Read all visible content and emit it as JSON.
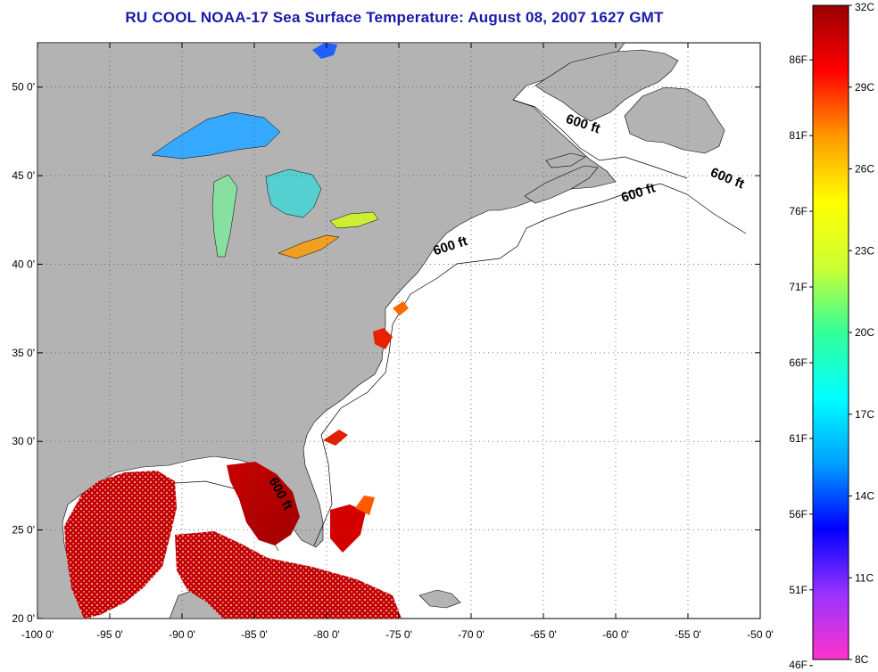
{
  "title": "RU COOL  NOAA-17  Sea Surface Temperature:  August 08, 2007 1627 GMT",
  "map": {
    "lon_range": [
      -100,
      -50
    ],
    "lat_range": [
      20,
      52.5
    ],
    "lon_ticks": [
      {
        "v": -100,
        "label": "-100 0'"
      },
      {
        "v": -95,
        "label": "-95 0'"
      },
      {
        "v": -90,
        "label": "-90 0'"
      },
      {
        "v": -85,
        "label": "-85 0'"
      },
      {
        "v": -80,
        "label": "-80 0'"
      },
      {
        "v": -75,
        "label": "-75 0'"
      },
      {
        "v": -70,
        "label": "-70 0'"
      },
      {
        "v": -65,
        "label": "-65 0'"
      },
      {
        "v": -60,
        "label": "-60 0'"
      },
      {
        "v": -55,
        "label": "-55 0'"
      },
      {
        "v": -50,
        "label": "-50 0'"
      }
    ],
    "lat_ticks": [
      {
        "v": 20,
        "label": "20 0'"
      },
      {
        "v": 25,
        "label": "25 0'"
      },
      {
        "v": 30,
        "label": "30 0'"
      },
      {
        "v": 35,
        "label": "35 0'"
      },
      {
        "v": 40,
        "label": "40 0'"
      },
      {
        "v": 45,
        "label": "45 0'"
      },
      {
        "v": 50,
        "label": "50 0'"
      }
    ],
    "grid": true,
    "land_color": "#b3b3b3",
    "ocean_color": "#ffffff",
    "isobath_label": "600 ft",
    "isobath_labels": [
      {
        "lon": -63.5,
        "lat": 48.0,
        "angle": 18
      },
      {
        "lon": -53.5,
        "lat": 45.0,
        "angle": 22
      },
      {
        "lon": -59.5,
        "lat": 43.5,
        "angle": -18
      },
      {
        "lon": -72.5,
        "lat": 40.5,
        "angle": -18
      },
      {
        "lon": -84.0,
        "lat": 27.8,
        "angle": 62
      }
    ]
  },
  "colorbar": {
    "left_labels": [
      "86F",
      "81F",
      "76F",
      "71F",
      "66F",
      "61F",
      "56F",
      "51F",
      "46F"
    ],
    "left_values_f": [
      86,
      81,
      76,
      71,
      66,
      61,
      56,
      51,
      46
    ],
    "right_labels": [
      "32C",
      "29C",
      "26C",
      "23C",
      "20C",
      "17C",
      "14C",
      "11C",
      "8C"
    ],
    "right_values_c": [
      32,
      29,
      26,
      23,
      20,
      17,
      14,
      11,
      8
    ],
    "range_c": [
      8,
      32
    ],
    "colors": [
      "#ff33cc",
      "#9933ff",
      "#0000ff",
      "#00a0ff",
      "#00ffff",
      "#33ff99",
      "#ccff33",
      "#ffff00",
      "#ff9900",
      "#ff0000",
      "#990000"
    ]
  }
}
